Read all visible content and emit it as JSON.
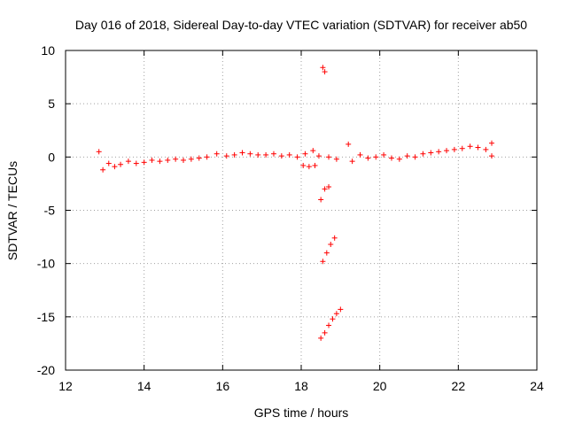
{
  "chart_data": {
    "type": "scatter",
    "title": "Day 016 of 2018, Sidereal Day-to-day VTEC variation (SDTVAR) for receiver ab50",
    "xlabel": "GPS time / hours",
    "ylabel": "SDTVAR / TECUs",
    "xlim": [
      12,
      24
    ],
    "ylim": [
      -20,
      10
    ],
    "xticks": [
      12,
      14,
      16,
      18,
      20,
      22,
      24
    ],
    "yticks": [
      -20,
      -15,
      -10,
      -5,
      0,
      5,
      10
    ],
    "xtick_labels": [
      "12",
      "14",
      "16",
      "18",
      "20",
      "22",
      "24"
    ],
    "ytick_labels": [
      "-20",
      "-15",
      "-10",
      "-5",
      "0",
      "5",
      "10"
    ],
    "grid": true,
    "marker": "+",
    "color": "#ff0000",
    "series": [
      {
        "name": "SDTVAR",
        "x": [
          12.85,
          12.95,
          13.1,
          13.25,
          13.4,
          13.6,
          13.8,
          14.0,
          14.2,
          14.4,
          14.6,
          14.8,
          15.0,
          15.2,
          15.4,
          15.6,
          15.85,
          16.1,
          16.3,
          16.5,
          16.7,
          16.9,
          17.1,
          17.3,
          17.5,
          17.7,
          17.9,
          18.1,
          18.3,
          18.45,
          18.7,
          18.9,
          19.2,
          19.3,
          19.5,
          19.7,
          19.9,
          20.1,
          20.3,
          20.5,
          20.7,
          20.9,
          21.1,
          21.3,
          21.5,
          21.7,
          21.9,
          22.1,
          22.3,
          22.5,
          22.7,
          22.85,
          22.85,
          18.05,
          18.2,
          18.35,
          18.55,
          18.6,
          18.5,
          18.6,
          18.7,
          18.55,
          18.65,
          18.75,
          18.85,
          18.5,
          18.6,
          18.7,
          18.8,
          18.9,
          19.0
        ],
        "y": [
          0.5,
          -1.2,
          -0.6,
          -0.9,
          -0.7,
          -0.4,
          -0.6,
          -0.5,
          -0.3,
          -0.4,
          -0.3,
          -0.2,
          -0.3,
          -0.2,
          -0.1,
          0.0,
          0.3,
          0.1,
          0.2,
          0.4,
          0.3,
          0.2,
          0.2,
          0.3,
          0.1,
          0.2,
          0.0,
          0.3,
          0.6,
          0.1,
          0.0,
          -0.2,
          1.2,
          -0.4,
          0.2,
          -0.1,
          0.0,
          0.2,
          -0.1,
          -0.2,
          0.1,
          0.0,
          0.3,
          0.4,
          0.5,
          0.6,
          0.7,
          0.8,
          1.0,
          0.9,
          0.7,
          1.3,
          0.1,
          -0.8,
          -0.9,
          -0.8,
          8.4,
          8.0,
          -4.0,
          -3.0,
          -2.8,
          -9.8,
          -9.0,
          -8.2,
          -7.6,
          -17.0,
          -16.5,
          -15.8,
          -15.2,
          -14.7,
          -14.3
        ]
      }
    ]
  }
}
